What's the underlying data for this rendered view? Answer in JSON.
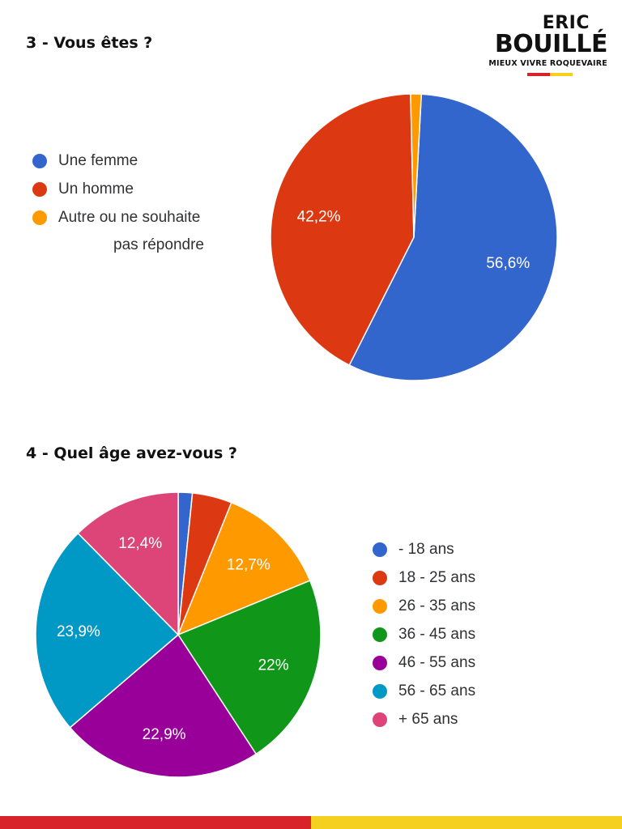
{
  "logo": {
    "line1": "ERIC",
    "line2": "BOUILLÉ",
    "line3": "MIEUX VIVRE ROQUEVAIRE",
    "bar_colors": [
      "#d8232a",
      "#f5d020"
    ]
  },
  "footer": {
    "colors": [
      "#d8232a",
      "#f5d020"
    ],
    "split": 0.5
  },
  "chart_data": [
    {
      "type": "pie",
      "title": "3 - Vous êtes ?",
      "legend_position": "left",
      "start_angle_deg": 87,
      "series": [
        {
          "name": "Une femme",
          "value": 56.6,
          "label": "56,6%",
          "color": "#3366cc"
        },
        {
          "name": "Un homme",
          "value": 42.2,
          "label": "42,2%",
          "color": "#dc3912"
        },
        {
          "name": "Autre ou ne souhaite pas répondre",
          "name_lines": [
            "Autre ou ne souhaite",
            "pas répondre"
          ],
          "value": 1.2,
          "label": "",
          "color": "#ff9900"
        }
      ]
    },
    {
      "type": "pie",
      "title": "4 - Quel âge avez-vous ?",
      "legend_position": "right",
      "start_angle_deg": 90,
      "series": [
        {
          "name": "- 18 ans",
          "value": 1.6,
          "label": "",
          "color": "#3366cc"
        },
        {
          "name": "18 - 25 ans",
          "value": 4.5,
          "label": "",
          "color": "#dc3912"
        },
        {
          "name": "26 - 35 ans",
          "value": 12.7,
          "label": "12,7%",
          "color": "#ff9900"
        },
        {
          "name": "36 - 45 ans",
          "value": 22,
          "label": "22%",
          "color": "#109618"
        },
        {
          "name": "46 - 55 ans",
          "value": 22.9,
          "label": "22,9%",
          "color": "#990099"
        },
        {
          "name": "56 - 65 ans",
          "value": 23.9,
          "label": "23,9%",
          "color": "#0099c6"
        },
        {
          "name": "+ 65 ans",
          "value": 12.4,
          "label": "12,4%",
          "color": "#dd4477"
        }
      ]
    }
  ]
}
